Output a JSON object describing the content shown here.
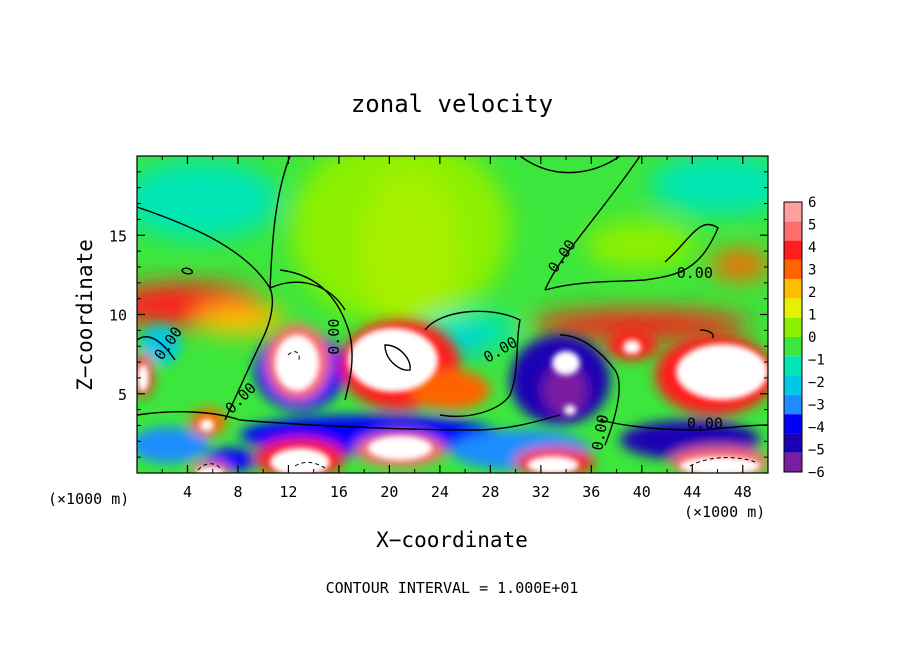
{
  "chart_data": {
    "type": "heatmap",
    "title": "zonal velocity",
    "xlabel": "X−coordinate",
    "ylabel": "Z−coordinate",
    "x_unit_left": "(×1000 m)",
    "x_unit_right": "(×1000 m)",
    "footer": "CONTOUR INTERVAL = 1.000E+01",
    "xlim": [
      0,
      50
    ],
    "ylim": [
      0,
      20
    ],
    "x_ticks": [
      4,
      8,
      12,
      16,
      20,
      24,
      28,
      32,
      36,
      40,
      44,
      48
    ],
    "y_ticks": [
      5,
      10,
      15
    ],
    "colorbar": {
      "levels": [
        -6,
        -5,
        -4,
        -3,
        -2,
        -1,
        0,
        1,
        2,
        3,
        4,
        5,
        6
      ],
      "colors": [
        "#7a1fa0",
        "#1e00b4",
        "#0000ff",
        "#1e8cff",
        "#00c8e6",
        "#00e6b4",
        "#3ce63c",
        "#8cf000",
        "#e6f000",
        "#ffbe00",
        "#ff6400",
        "#ff1e1e",
        "#ff6e6e",
        "#ffa0a0"
      ]
    },
    "contour_labels": [
      {
        "text": "0.00",
        "x": 34,
        "y": 13.5,
        "angle": -55
      },
      {
        "text": "0.00",
        "x": 44.2,
        "y": 12.3,
        "angle": 0
      },
      {
        "text": "0.00",
        "x": 16,
        "y": 8.6,
        "angle": -90
      },
      {
        "text": "0.00",
        "x": 29,
        "y": 7.5,
        "angle": -30
      },
      {
        "text": "0.00",
        "x": 8.5,
        "y": 4.5,
        "angle": -45
      },
      {
        "text": "0.00",
        "x": 2.8,
        "y": 8.0,
        "angle": -55
      },
      {
        "text": "0.00",
        "x": 37.1,
        "y": 2.5,
        "angle": -80
      },
      {
        "text": "0.00",
        "x": 45,
        "y": 2.8,
        "angle": 0
      }
    ]
  }
}
